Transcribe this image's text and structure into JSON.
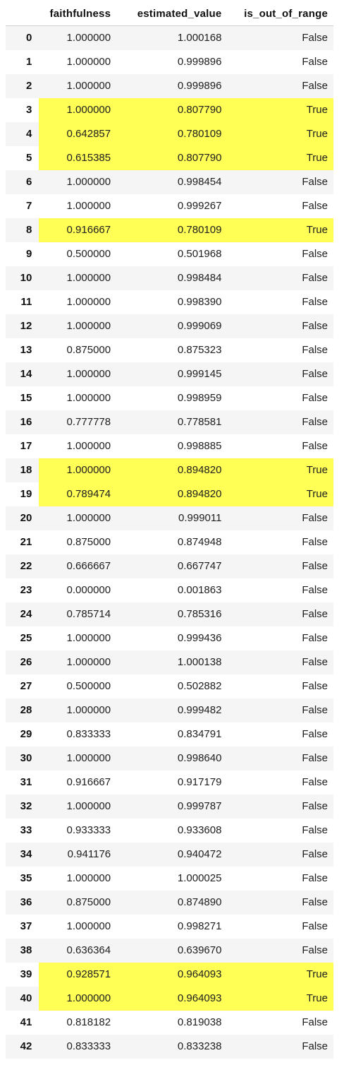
{
  "table": {
    "columns": {
      "index": "",
      "faithfulness": "faithfulness",
      "estimated_value": "estimated_value",
      "is_out_of_range": "is_out_of_range"
    },
    "highlight_color": "#ffff55",
    "rows": [
      {
        "index": "0",
        "faithfulness": "1.000000",
        "estimated_value": "1.000168",
        "is_out_of_range": "False"
      },
      {
        "index": "1",
        "faithfulness": "1.000000",
        "estimated_value": "0.999896",
        "is_out_of_range": "False"
      },
      {
        "index": "2",
        "faithfulness": "1.000000",
        "estimated_value": "0.999896",
        "is_out_of_range": "False"
      },
      {
        "index": "3",
        "faithfulness": "1.000000",
        "estimated_value": "0.807790",
        "is_out_of_range": "True"
      },
      {
        "index": "4",
        "faithfulness": "0.642857",
        "estimated_value": "0.780109",
        "is_out_of_range": "True"
      },
      {
        "index": "5",
        "faithfulness": "0.615385",
        "estimated_value": "0.807790",
        "is_out_of_range": "True"
      },
      {
        "index": "6",
        "faithfulness": "1.000000",
        "estimated_value": "0.998454",
        "is_out_of_range": "False"
      },
      {
        "index": "7",
        "faithfulness": "1.000000",
        "estimated_value": "0.999267",
        "is_out_of_range": "False"
      },
      {
        "index": "8",
        "faithfulness": "0.916667",
        "estimated_value": "0.780109",
        "is_out_of_range": "True"
      },
      {
        "index": "9",
        "faithfulness": "0.500000",
        "estimated_value": "0.501968",
        "is_out_of_range": "False"
      },
      {
        "index": "10",
        "faithfulness": "1.000000",
        "estimated_value": "0.998484",
        "is_out_of_range": "False"
      },
      {
        "index": "11",
        "faithfulness": "1.000000",
        "estimated_value": "0.998390",
        "is_out_of_range": "False"
      },
      {
        "index": "12",
        "faithfulness": "1.000000",
        "estimated_value": "0.999069",
        "is_out_of_range": "False"
      },
      {
        "index": "13",
        "faithfulness": "0.875000",
        "estimated_value": "0.875323",
        "is_out_of_range": "False"
      },
      {
        "index": "14",
        "faithfulness": "1.000000",
        "estimated_value": "0.999145",
        "is_out_of_range": "False"
      },
      {
        "index": "15",
        "faithfulness": "1.000000",
        "estimated_value": "0.998959",
        "is_out_of_range": "False"
      },
      {
        "index": "16",
        "faithfulness": "0.777778",
        "estimated_value": "0.778581",
        "is_out_of_range": "False"
      },
      {
        "index": "17",
        "faithfulness": "1.000000",
        "estimated_value": "0.998885",
        "is_out_of_range": "False"
      },
      {
        "index": "18",
        "faithfulness": "1.000000",
        "estimated_value": "0.894820",
        "is_out_of_range": "True"
      },
      {
        "index": "19",
        "faithfulness": "0.789474",
        "estimated_value": "0.894820",
        "is_out_of_range": "True"
      },
      {
        "index": "20",
        "faithfulness": "1.000000",
        "estimated_value": "0.999011",
        "is_out_of_range": "False"
      },
      {
        "index": "21",
        "faithfulness": "0.875000",
        "estimated_value": "0.874948",
        "is_out_of_range": "False"
      },
      {
        "index": "22",
        "faithfulness": "0.666667",
        "estimated_value": "0.667747",
        "is_out_of_range": "False"
      },
      {
        "index": "23",
        "faithfulness": "0.000000",
        "estimated_value": "0.001863",
        "is_out_of_range": "False"
      },
      {
        "index": "24",
        "faithfulness": "0.785714",
        "estimated_value": "0.785316",
        "is_out_of_range": "False"
      },
      {
        "index": "25",
        "faithfulness": "1.000000",
        "estimated_value": "0.999436",
        "is_out_of_range": "False"
      },
      {
        "index": "26",
        "faithfulness": "1.000000",
        "estimated_value": "1.000138",
        "is_out_of_range": "False"
      },
      {
        "index": "27",
        "faithfulness": "0.500000",
        "estimated_value": "0.502882",
        "is_out_of_range": "False"
      },
      {
        "index": "28",
        "faithfulness": "1.000000",
        "estimated_value": "0.999482",
        "is_out_of_range": "False"
      },
      {
        "index": "29",
        "faithfulness": "0.833333",
        "estimated_value": "0.834791",
        "is_out_of_range": "False"
      },
      {
        "index": "30",
        "faithfulness": "1.000000",
        "estimated_value": "0.998640",
        "is_out_of_range": "False"
      },
      {
        "index": "31",
        "faithfulness": "0.916667",
        "estimated_value": "0.917179",
        "is_out_of_range": "False"
      },
      {
        "index": "32",
        "faithfulness": "1.000000",
        "estimated_value": "0.999787",
        "is_out_of_range": "False"
      },
      {
        "index": "33",
        "faithfulness": "0.933333",
        "estimated_value": "0.933608",
        "is_out_of_range": "False"
      },
      {
        "index": "34",
        "faithfulness": "0.941176",
        "estimated_value": "0.940472",
        "is_out_of_range": "False"
      },
      {
        "index": "35",
        "faithfulness": "1.000000",
        "estimated_value": "1.000025",
        "is_out_of_range": "False"
      },
      {
        "index": "36",
        "faithfulness": "0.875000",
        "estimated_value": "0.874890",
        "is_out_of_range": "False"
      },
      {
        "index": "37",
        "faithfulness": "1.000000",
        "estimated_value": "0.998271",
        "is_out_of_range": "False"
      },
      {
        "index": "38",
        "faithfulness": "0.636364",
        "estimated_value": "0.639670",
        "is_out_of_range": "False"
      },
      {
        "index": "39",
        "faithfulness": "0.928571",
        "estimated_value": "0.964093",
        "is_out_of_range": "True"
      },
      {
        "index": "40",
        "faithfulness": "1.000000",
        "estimated_value": "0.964093",
        "is_out_of_range": "True"
      },
      {
        "index": "41",
        "faithfulness": "0.818182",
        "estimated_value": "0.819038",
        "is_out_of_range": "False"
      },
      {
        "index": "42",
        "faithfulness": "0.833333",
        "estimated_value": "0.833238",
        "is_out_of_range": "False"
      }
    ]
  }
}
